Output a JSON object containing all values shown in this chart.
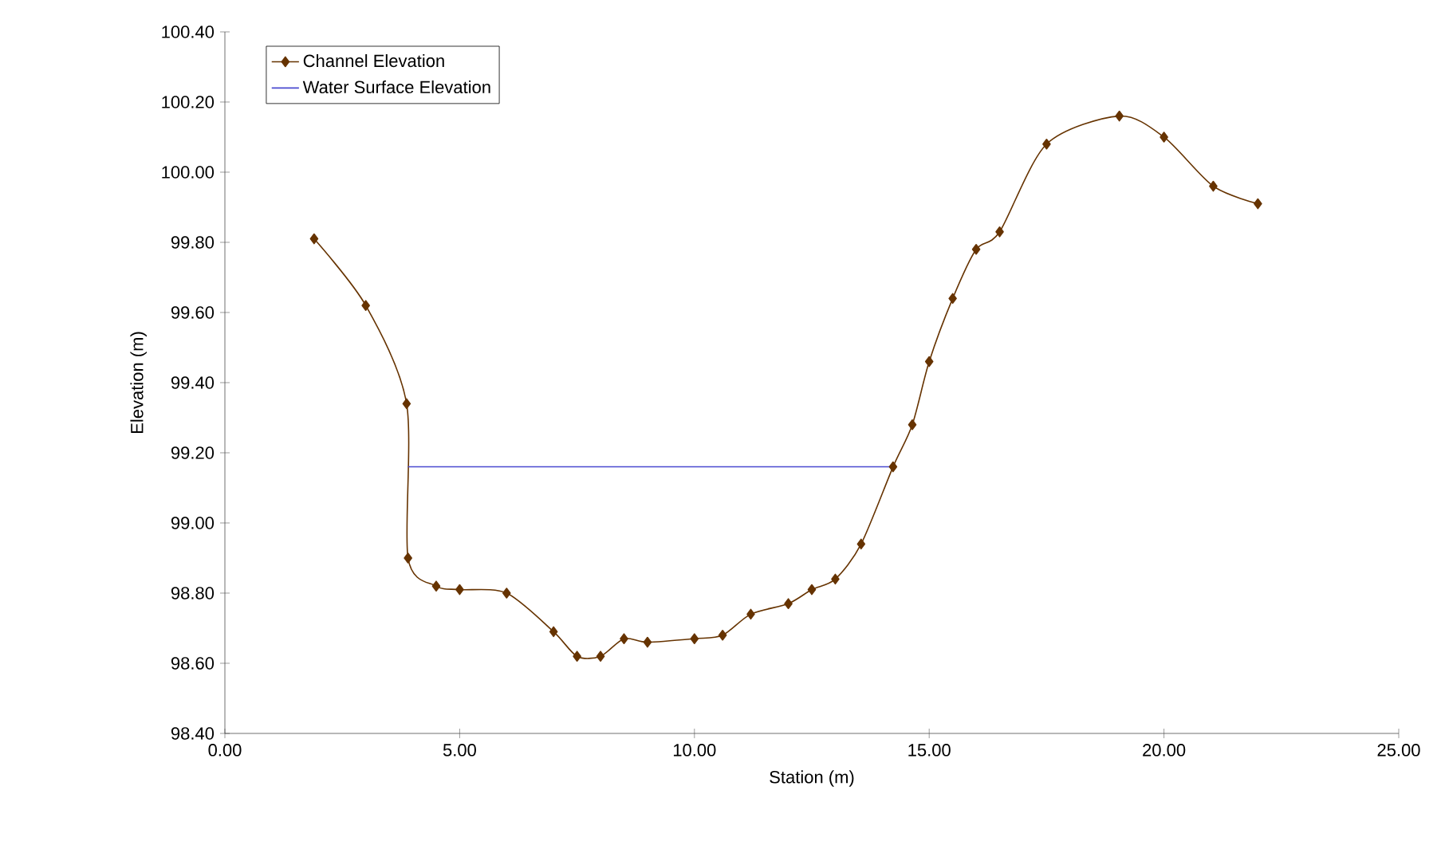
{
  "chart_data": {
    "type": "line",
    "xlabel": "Station (m)",
    "ylabel": "Elevation (m)",
    "xlim": [
      0,
      25
    ],
    "ylim": [
      98.4,
      100.4
    ],
    "xticks": [
      {
        "value": 0,
        "label": "0.00"
      },
      {
        "value": 5,
        "label": "5.00"
      },
      {
        "value": 10,
        "label": "10.00"
      },
      {
        "value": 15,
        "label": "15.00"
      },
      {
        "value": 20,
        "label": "20.00"
      },
      {
        "value": 25,
        "label": "25.00"
      }
    ],
    "yticks": [
      {
        "value": 98.4,
        "label": "98.40"
      },
      {
        "value": 98.6,
        "label": "98.60"
      },
      {
        "value": 98.8,
        "label": "98.80"
      },
      {
        "value": 99.0,
        "label": "99.00"
      },
      {
        "value": 99.2,
        "label": "99.20"
      },
      {
        "value": 99.4,
        "label": "99.40"
      },
      {
        "value": 99.6,
        "label": "99.60"
      },
      {
        "value": 99.8,
        "label": "99.80"
      },
      {
        "value": 100.0,
        "label": "100.00"
      },
      {
        "value": 100.2,
        "label": "100.20"
      },
      {
        "value": 100.4,
        "label": "100.40"
      }
    ],
    "legend": "top left",
    "grid": false,
    "marker": "diamond",
    "series": [
      {
        "name": "Channel Elevation",
        "color": "#663300",
        "x": [
          1.9,
          3.0,
          3.87,
          3.9,
          4.5,
          5.0,
          6.0,
          7.0,
          7.5,
          8.0,
          8.5,
          9.0,
          10.0,
          10.6,
          11.2,
          12.0,
          12.5,
          13.0,
          13.55,
          14.23,
          14.64,
          15.0,
          15.5,
          16.0,
          16.5,
          17.5,
          19.05,
          20.0,
          21.05,
          22.0
        ],
        "values": [
          99.81,
          99.62,
          99.34,
          98.9,
          98.82,
          98.81,
          98.8,
          98.69,
          98.62,
          98.62,
          98.67,
          98.66,
          98.67,
          98.68,
          98.74,
          98.77,
          98.81,
          98.84,
          98.94,
          99.16,
          99.28,
          99.46,
          99.64,
          99.78,
          99.83,
          100.08,
          100.16,
          100.1,
          99.96,
          99.91
        ]
      },
      {
        "name": "Water Surface Elevation",
        "color": "#4a4ad0",
        "marker": "none",
        "x": [
          3.9,
          14.23
        ],
        "values": [
          99.16,
          99.16
        ]
      }
    ]
  }
}
